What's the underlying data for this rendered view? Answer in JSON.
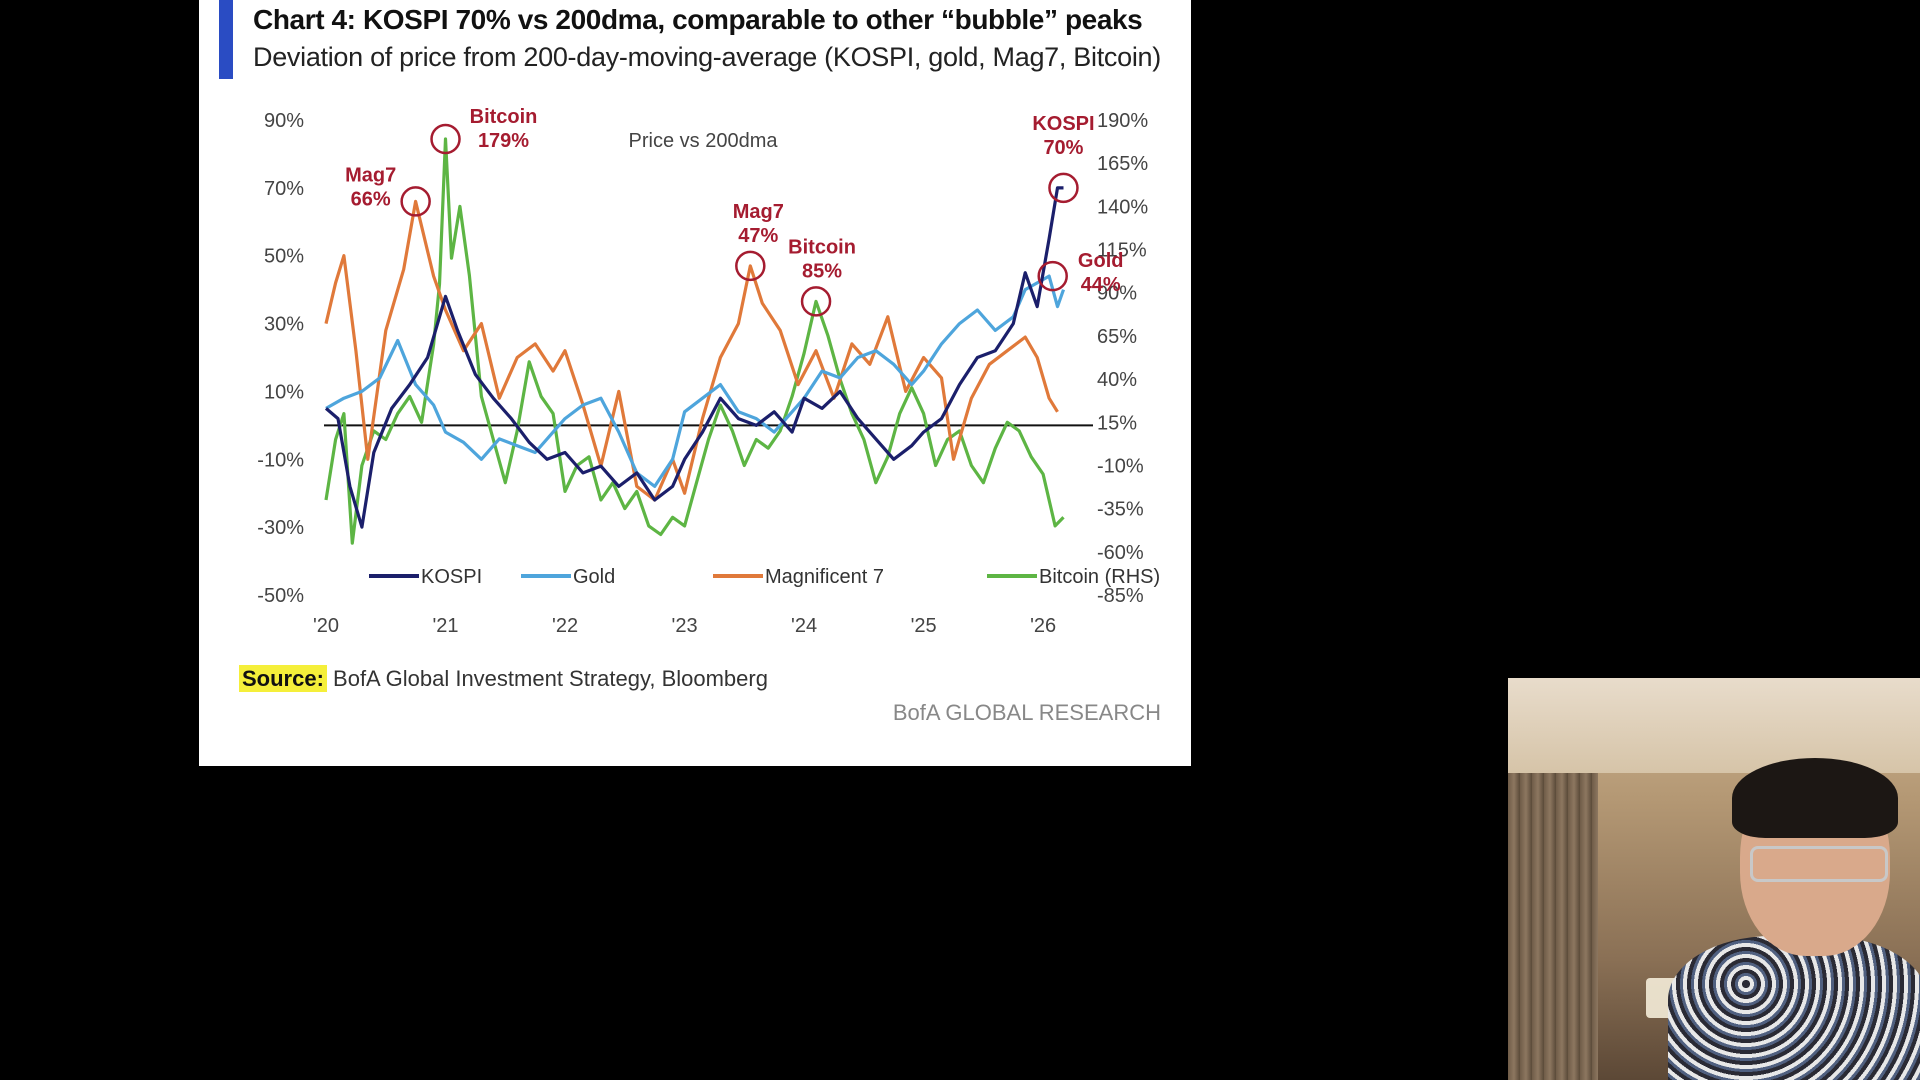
{
  "title": "Chart 4: KOSPI 70% vs 200dma, comparable to other “bubble” peaks",
  "subtitle": "Deviation of price from 200-day-moving-average (KOSPI, gold, Mag7, Bitcoin)",
  "source_label": "Source:",
  "source_text": " BofA Global Investment Strategy, Bloomberg",
  "footer": "BofA GLOBAL RESEARCH",
  "chart_data": {
    "type": "line",
    "inner_label": "Price vs 200dma",
    "x_ticks": [
      "'20",
      "'21",
      "'22",
      "'23",
      "'24",
      "'25",
      "'26"
    ],
    "x_tick_values": [
      2020,
      2021,
      2022,
      2023,
      2024,
      2025,
      2026
    ],
    "xlim": [
      2020,
      2026.3
    ],
    "y_left_ticks": [
      "90%",
      "70%",
      "50%",
      "30%",
      "10%",
      "-10%",
      "-30%",
      "-50%"
    ],
    "y_left_values": [
      90,
      70,
      50,
      30,
      10,
      -10,
      -30,
      -50
    ],
    "ylim_left": [
      -50,
      90
    ],
    "y_right_ticks": [
      "190%",
      "165%",
      "140%",
      "115%",
      "90%",
      "65%",
      "40%",
      "15%",
      "-10%",
      "-35%",
      "-60%",
      "-85%"
    ],
    "y_right_values": [
      190,
      165,
      140,
      115,
      90,
      65,
      40,
      15,
      -10,
      -35,
      -60,
      -85
    ],
    "ylim_right": [
      -85,
      190
    ],
    "zero_line": 0,
    "series": [
      {
        "name": "KOSPI",
        "axis": "left",
        "color": "#1b1f6b",
        "x": [
          2020.0,
          2020.1,
          2020.2,
          2020.3,
          2020.4,
          2020.55,
          2020.7,
          2020.85,
          2021.0,
          2021.1,
          2021.25,
          2021.4,
          2021.55,
          2021.7,
          2021.85,
          2022.0,
          2022.15,
          2022.3,
          2022.45,
          2022.6,
          2022.75,
          2022.9,
          2023.0,
          2023.15,
          2023.3,
          2023.45,
          2023.6,
          2023.75,
          2023.9,
          2024.0,
          2024.15,
          2024.3,
          2024.45,
          2024.6,
          2024.75,
          2024.9,
          2025.0,
          2025.15,
          2025.3,
          2025.45,
          2025.6,
          2025.75,
          2025.85,
          2025.95,
          2026.05,
          2026.12,
          2026.17
        ],
        "y": [
          5,
          2,
          -18,
          -30,
          -8,
          5,
          12,
          20,
          38,
          28,
          15,
          8,
          2,
          -5,
          -10,
          -8,
          -14,
          -12,
          -18,
          -14,
          -22,
          -18,
          -10,
          -2,
          8,
          2,
          0,
          4,
          -2,
          8,
          5,
          10,
          2,
          -4,
          -10,
          -6,
          -2,
          2,
          12,
          20,
          22,
          30,
          45,
          35,
          55,
          70,
          70
        ]
      },
      {
        "name": "Gold",
        "axis": "left",
        "color": "#4ea5dc",
        "x": [
          2020.0,
          2020.15,
          2020.3,
          2020.45,
          2020.6,
          2020.75,
          2020.9,
          2021.0,
          2021.15,
          2021.3,
          2021.45,
          2021.6,
          2021.75,
          2021.9,
          2022.0,
          2022.15,
          2022.3,
          2022.45,
          2022.6,
          2022.75,
          2022.9,
          2023.0,
          2023.15,
          2023.3,
          2023.45,
          2023.6,
          2023.75,
          2023.9,
          2024.0,
          2024.15,
          2024.3,
          2024.45,
          2024.6,
          2024.75,
          2024.9,
          2025.0,
          2025.15,
          2025.3,
          2025.45,
          2025.6,
          2025.75,
          2025.85,
          2025.95,
          2026.05,
          2026.12,
          2026.17
        ],
        "y": [
          5,
          8,
          10,
          14,
          25,
          12,
          6,
          -2,
          -5,
          -10,
          -4,
          -6,
          -8,
          -2,
          2,
          6,
          8,
          -2,
          -14,
          -18,
          -10,
          4,
          8,
          12,
          4,
          2,
          -2,
          4,
          8,
          16,
          14,
          20,
          22,
          18,
          12,
          16,
          24,
          30,
          34,
          28,
          32,
          40,
          42,
          44,
          35,
          40
        ]
      },
      {
        "name": "Magnificent 7",
        "axis": "left",
        "color": "#e0793a",
        "x": [
          2020.0,
          2020.08,
          2020.15,
          2020.25,
          2020.35,
          2020.5,
          2020.65,
          2020.75,
          2020.9,
          2021.0,
          2021.15,
          2021.3,
          2021.45,
          2021.6,
          2021.75,
          2021.9,
          2022.0,
          2022.15,
          2022.3,
          2022.45,
          2022.6,
          2022.75,
          2022.9,
          2023.0,
          2023.15,
          2023.3,
          2023.45,
          2023.55,
          2023.65,
          2023.8,
          2023.95,
          2024.1,
          2024.25,
          2024.4,
          2024.55,
          2024.7,
          2024.85,
          2025.0,
          2025.15,
          2025.25,
          2025.4,
          2025.55,
          2025.7,
          2025.85,
          2025.95,
          2026.05,
          2026.12
        ],
        "y": [
          30,
          42,
          50,
          22,
          -10,
          28,
          46,
          66,
          44,
          34,
          22,
          30,
          8,
          20,
          24,
          16,
          22,
          6,
          -12,
          10,
          -18,
          -22,
          -10,
          -20,
          2,
          20,
          30,
          47,
          36,
          28,
          12,
          22,
          8,
          24,
          18,
          32,
          10,
          20,
          14,
          -10,
          8,
          18,
          22,
          26,
          20,
          8,
          4
        ]
      },
      {
        "name": "Bitcoin (RHS)",
        "axis": "right",
        "color": "#5db544",
        "x": [
          2020.0,
          2020.08,
          2020.15,
          2020.22,
          2020.3,
          2020.4,
          2020.5,
          2020.6,
          2020.7,
          2020.8,
          2020.9,
          2020.95,
          2021.0,
          2021.05,
          2021.12,
          2021.2,
          2021.3,
          2021.4,
          2021.5,
          2021.6,
          2021.7,
          2021.8,
          2021.9,
          2022.0,
          2022.1,
          2022.2,
          2022.3,
          2022.4,
          2022.5,
          2022.6,
          2022.7,
          2022.8,
          2022.9,
          2023.0,
          2023.1,
          2023.2,
          2023.3,
          2023.4,
          2023.5,
          2023.6,
          2023.7,
          2023.8,
          2023.9,
          2024.0,
          2024.1,
          2024.2,
          2024.3,
          2024.4,
          2024.5,
          2024.6,
          2024.7,
          2024.8,
          2024.9,
          2025.0,
          2025.1,
          2025.2,
          2025.3,
          2025.4,
          2025.5,
          2025.6,
          2025.7,
          2025.8,
          2025.9,
          2026.0,
          2026.1,
          2026.17
        ],
        "y": [
          -30,
          5,
          20,
          -55,
          -10,
          10,
          5,
          20,
          30,
          15,
          60,
          95,
          179,
          110,
          140,
          100,
          30,
          5,
          -20,
          10,
          50,
          30,
          20,
          -25,
          -10,
          -5,
          -30,
          -20,
          -35,
          -25,
          -45,
          -50,
          -40,
          -45,
          -20,
          5,
          25,
          10,
          -10,
          5,
          0,
          10,
          30,
          55,
          85,
          65,
          40,
          20,
          5,
          -20,
          -5,
          20,
          35,
          20,
          -10,
          5,
          10,
          -10,
          -20,
          0,
          15,
          10,
          -5,
          -15,
          -45,
          -40
        ]
      }
    ],
    "annotations": [
      {
        "label": "Mag7",
        "value": "66%",
        "series": "Magnificent 7",
        "x": 2020.75,
        "y": 66
      },
      {
        "label": "Bitcoin",
        "value": "179%",
        "series": "Bitcoin (RHS)",
        "x": 2021.0,
        "y": 179
      },
      {
        "label": "Mag7",
        "value": "47%",
        "series": "Magnificent 7",
        "x": 2023.55,
        "y": 47
      },
      {
        "label": "Bitcoin",
        "value": "85%",
        "series": "Bitcoin (RHS)",
        "x": 2024.1,
        "y": 85
      },
      {
        "label": "KOSPI",
        "value": "70%",
        "series": "KOSPI",
        "x": 2026.17,
        "y": 70
      },
      {
        "label": "Gold",
        "value": "44%",
        "series": "Gold",
        "x": 2026.08,
        "y": 44
      }
    ],
    "legend_position": "bottom"
  }
}
